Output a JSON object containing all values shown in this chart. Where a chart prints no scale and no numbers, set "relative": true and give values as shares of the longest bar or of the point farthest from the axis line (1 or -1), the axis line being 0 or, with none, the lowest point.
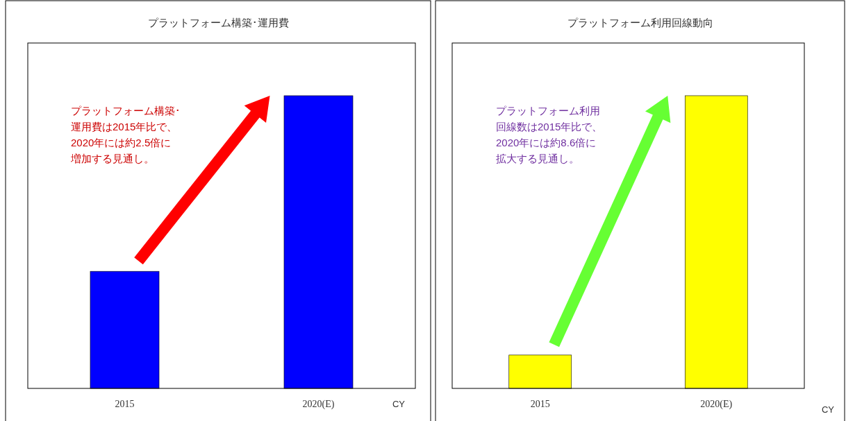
{
  "chart_data": [
    {
      "type": "bar",
      "title": "プラットフォーム構築･運用費",
      "categories": [
        "2015",
        "2020(E)"
      ],
      "relative": true,
      "xlabel": "CY",
      "series": [
        {
          "color": "#0000ff",
          "values": [
            0.4,
            1
          ]
        }
      ],
      "annotations": [
        "プラットフォーム構築･",
        "運用費は2015年比で、",
        "2020年には約2.5倍に",
        "増加する見通し。"
      ]
    },
    {
      "type": "bar",
      "title": "プラットフォーム利用回線動向",
      "categories": [
        "2015",
        "2020(E)"
      ],
      "relative": true,
      "xlabel": "CY",
      "series": [
        {
          "color": "#ffff00",
          "values": [
            0.114,
            1
          ]
        }
      ],
      "annotations": [
        "プラットフォーム利用",
        "回線数は2015年比で、",
        "2020年には約8.6倍に",
        "拡大する見通し。"
      ]
    }
  ]
}
